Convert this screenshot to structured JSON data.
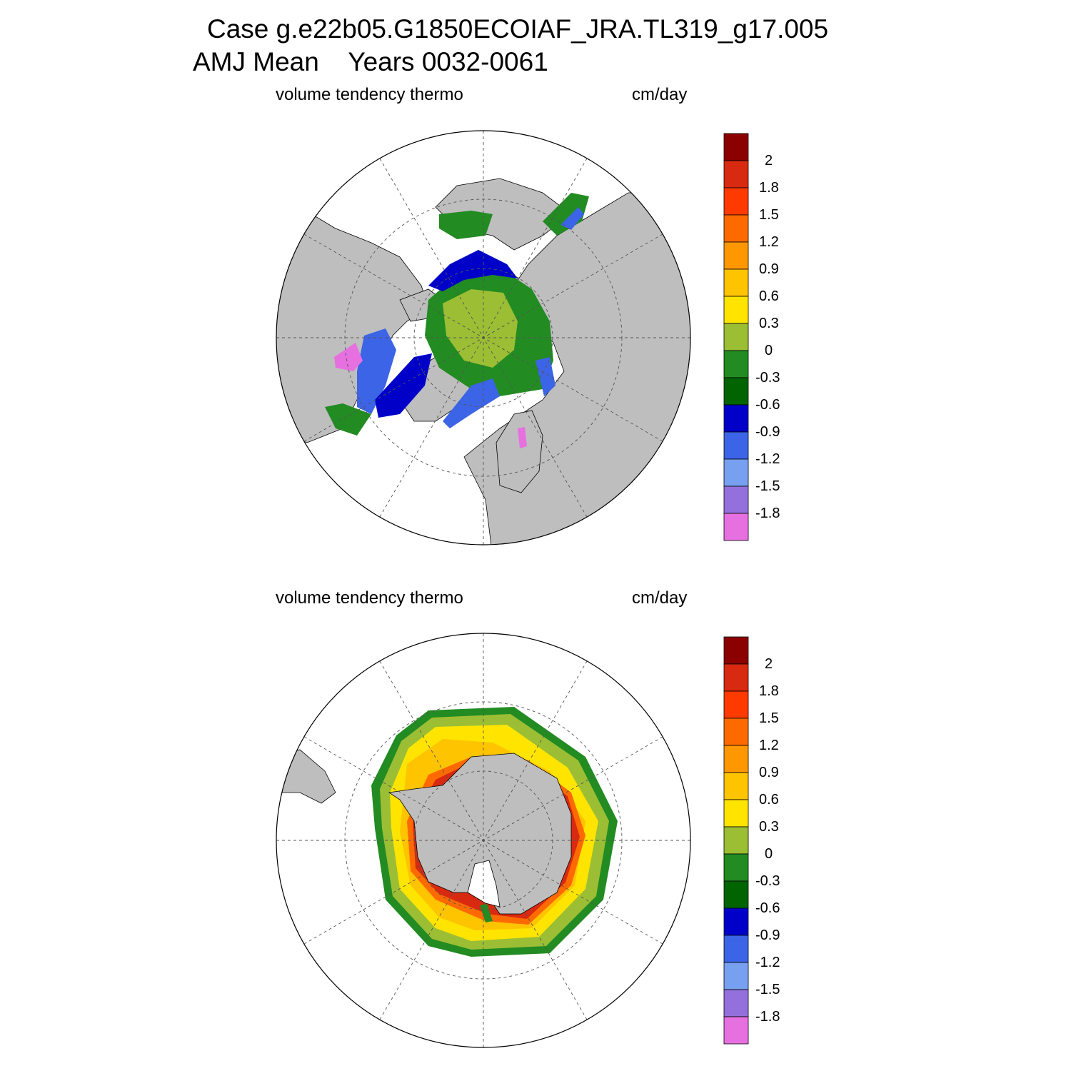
{
  "title": {
    "line1": "Case g.e22b05.G1850ECOIAF_JRA.TL319_g17.005",
    "line2": "AMJ Mean    Years 0032-0061"
  },
  "panels": [
    {
      "id": "north",
      "hemisphere": "Northern Hemisphere (Arctic)",
      "variable_label": "volume tendency thermo",
      "units_label": "cm/day"
    },
    {
      "id": "south",
      "hemisphere": "Southern Hemisphere (Antarctic)",
      "variable_label": "volume tendency thermo",
      "units_label": "cm/day"
    }
  ],
  "colorbar": {
    "levels": [
      "2",
      "1.8",
      "1.5",
      "1.2",
      "0.9",
      "0.6",
      "0.3",
      "0",
      "-0.3",
      "-0.6",
      "-0.9",
      "-1.2",
      "-1.5",
      "-1.8"
    ],
    "colors": [
      "#8B0000",
      "#D82A10",
      "#FF3A00",
      "#FF6A00",
      "#FF9800",
      "#FFC400",
      "#FFE400",
      "#9BBE34",
      "#228B22",
      "#006400",
      "#0000C8",
      "#3C64E6",
      "#78A0F0",
      "#9370DB",
      "#E670E0"
    ]
  },
  "style": {
    "land_color": "#BEBEBE",
    "ocean_color": "#FFFFFF",
    "grid_color": "#555555"
  }
}
